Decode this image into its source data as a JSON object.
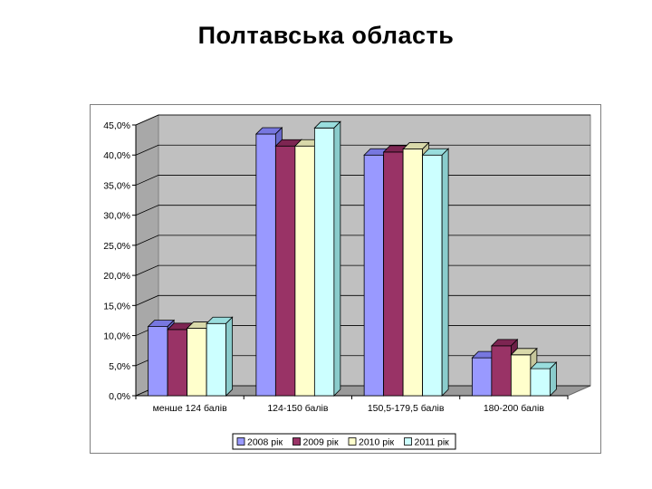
{
  "page": {
    "title": "Полтавська область"
  },
  "colors": {
    "series": [
      {
        "front": "#9999ff",
        "top": "#7777e0",
        "side": "#6a6acc"
      },
      {
        "front": "#993366",
        "top": "#7d2552",
        "side": "#6c1f47"
      },
      {
        "front": "#ffffcc",
        "top": "#d9d9aa",
        "side": "#c7c79c"
      },
      {
        "front": "#ccffff",
        "top": "#99dddd",
        "side": "#8acccc"
      }
    ],
    "plot_wall": "#c0c0c0",
    "plot_floor": "#9a9a9a",
    "outline": "#000000"
  },
  "chart_data": {
    "type": "bar",
    "title": "",
    "xlabel": "",
    "ylabel": "",
    "categories": [
      "менше 124 балів",
      "124-150 балів",
      "150,5-179,5 балів",
      "180-200 балів"
    ],
    "series": [
      {
        "name": "2008 рік",
        "values": [
          11.5,
          43.5,
          40.0,
          6.3
        ]
      },
      {
        "name": "2009 рік",
        "values": [
          11.0,
          41.5,
          40.5,
          8.3
        ]
      },
      {
        "name": "2010 рік",
        "values": [
          11.2,
          41.5,
          41.0,
          6.8
        ]
      },
      {
        "name": "2011 рік",
        "values": [
          12.0,
          44.5,
          40.0,
          4.5
        ]
      }
    ],
    "ylim": [
      0,
      45
    ],
    "yticks": [
      0,
      5,
      10,
      15,
      20,
      25,
      30,
      35,
      40,
      45
    ],
    "ytick_labels": [
      "0,0%",
      "5,0%",
      "10,0%",
      "15,0%",
      "20,0%",
      "25,0%",
      "30,0%",
      "35,0%",
      "40,0%",
      "45,0%"
    ],
    "grid": true,
    "legend_position": "bottom",
    "style": "3d-clustered-column"
  }
}
